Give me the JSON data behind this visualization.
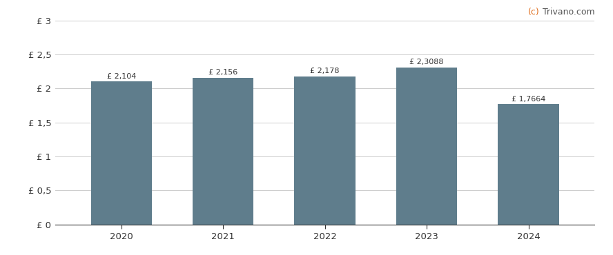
{
  "years": [
    2020,
    2021,
    2022,
    2023,
    2024
  ],
  "values": [
    2.104,
    2.156,
    2.178,
    2.3088,
    1.7664
  ],
  "labels": [
    "£ 2,104",
    "£ 2,156",
    "£ 2,178",
    "£ 2,3088",
    "£ 1,7664"
  ],
  "bar_color": "#5f7d8c",
  "background_color": "#ffffff",
  "ylim": [
    0,
    3
  ],
  "yticks": [
    0,
    0.5,
    1.0,
    1.5,
    2.0,
    2.5,
    3.0
  ],
  "ytick_labels": [
    "£ 0",
    "£ 0,5",
    "£ 1",
    "£ 1,5",
    "£ 2",
    "£ 2,5",
    "£ 3"
  ],
  "watermark_c": "(c)",
  "watermark_rest": " Trivano.com",
  "watermark_color_c": "#e07020",
  "watermark_color_rest": "#555555",
  "grid_color": "#cccccc",
  "bar_width": 0.6,
  "label_fontsize": 8.0,
  "tick_fontsize": 9.5,
  "watermark_fontsize": 9.0
}
